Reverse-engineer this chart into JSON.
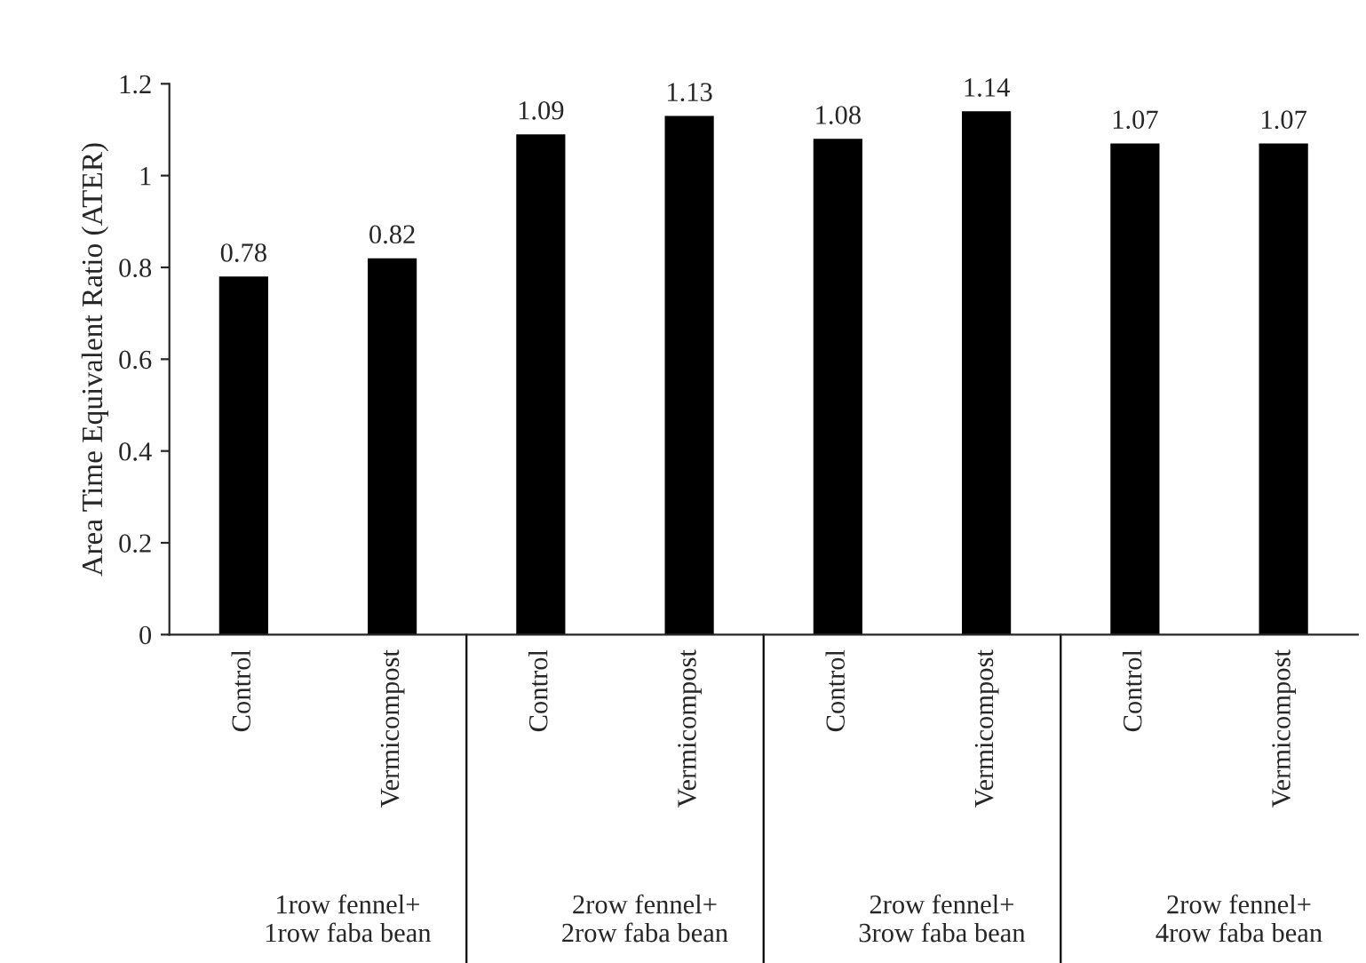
{
  "chart_data": {
    "type": "bar",
    "ylabel": "Area Time Equivalent Ratio (ATER)",
    "categories": [
      "Control",
      "Vermicompost",
      "Control",
      "Vermicompost",
      "Control",
      "Vermicompost",
      "Control",
      "Vermicompost"
    ],
    "values": [
      0.78,
      0.82,
      1.09,
      1.13,
      1.08,
      1.14,
      1.07,
      1.07
    ],
    "color": "#000000",
    "ylim": [
      0,
      1.2
    ],
    "yticks": [
      0,
      0.2,
      0.4,
      0.6,
      0.8,
      1,
      1.2
    ],
    "data_labels": true,
    "annotations": [
      "1row fennel+\n1row faba bean",
      "2row fennel+\n2row faba bean",
      "2row fennel+\n3row faba bean",
      "2row fennel+\n4row faba bean"
    ]
  }
}
